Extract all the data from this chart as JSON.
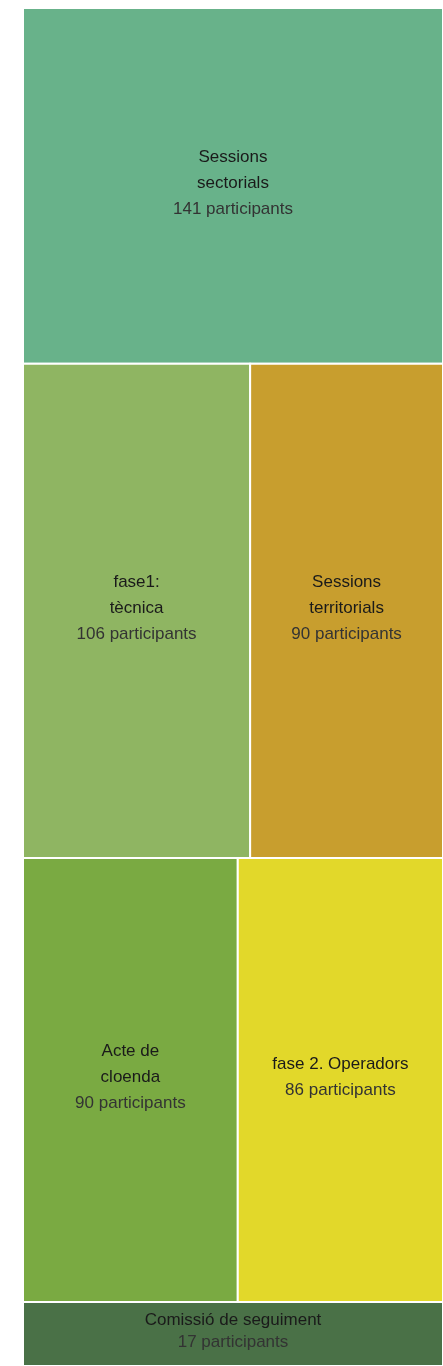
{
  "chart_data": {
    "type": "other",
    "categories": [
      "Sessions\nsectorials",
      "fase1:\ntècnica",
      "Sessions\nterritorials",
      "Acte de\ncloenda",
      "fase 2. Operadors",
      "Comissió de seguiment"
    ],
    "values": [
      141,
      106,
      90,
      90,
      86,
      17
    ],
    "value_labels": [
      "141 participants",
      "106 participants",
      "90 participants",
      "90 participants",
      "86 participants",
      "17 participants"
    ],
    "colors": [
      "#68b28a",
      "#8fb562",
      "#c89e2e",
      "#7aaa42",
      "#e2d82a",
      "#4a7147"
    ]
  }
}
